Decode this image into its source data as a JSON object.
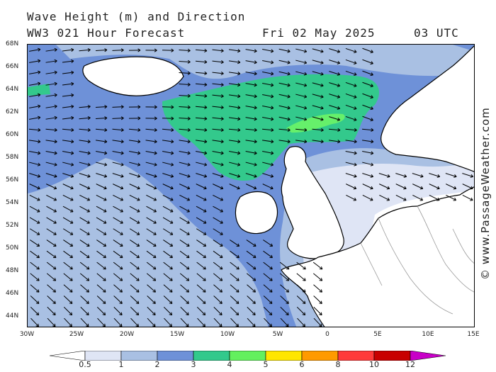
{
  "header": {
    "title": "Wave Height (m) and Direction",
    "subtitle": "WW3 021 Hour Forecast",
    "forecast_date": "Fri 02 May 2025",
    "forecast_time": "03 UTC"
  },
  "credit": "© www.PassageWeather.com",
  "map": {
    "lat_labels": [
      "68N",
      "66N",
      "64N",
      "62N",
      "60N",
      "58N",
      "56N",
      "54N",
      "52N",
      "50N",
      "48N",
      "46N",
      "44N"
    ],
    "lon_labels": [
      "30W",
      "25W",
      "20W",
      "15W",
      "10W",
      "5W",
      "0",
      "5E",
      "10E",
      "15E"
    ],
    "colors": {
      "land": "#ffffff",
      "lt05": "#dfe5f5",
      "h05_1": "#a9c0e3",
      "h1_2": "#6e91d8",
      "h2_3": "#6a8fd6",
      "h3_4": "#33c98c",
      "h4_5": "#66f06b",
      "coast": "#000000",
      "border": "#9a9a9a"
    }
  },
  "colorbar": {
    "labels": [
      "0.5",
      "1",
      "2",
      "3",
      "4",
      "5",
      "6",
      "8",
      "10",
      "12"
    ],
    "colors": [
      "#ffffff",
      "#dfe5f5",
      "#a9c0e3",
      "#6e91d8",
      "#32c98c",
      "#63f05e",
      "#ffe600",
      "#ff9a00",
      "#ff3a3a",
      "#c80000",
      "#c800c8"
    ]
  }
}
